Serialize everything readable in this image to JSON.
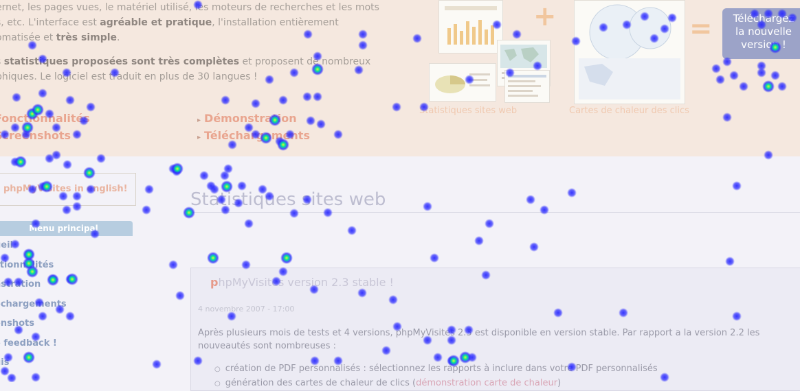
{
  "intro": {
    "p1_line1": "ernet, les pages vues, le matériel utilisé, les moteurs de recherches et les mots",
    "p1_line2_pre": "s, etc. L'interface est ",
    "p1_line2_bold": "agréable et pratique",
    "p1_line2_post": ", l'installation entièrement",
    "p1_line3_pre": "omatisée et ",
    "p1_line3_bold": "très simple",
    "p1_line3_post": ".",
    "p2_line1_pre": "s ",
    "p2_line1_bold": "statistiques proposées sont très complètes",
    "p2_line1_post": " et proposent de nombreux",
    "p2_line2": "phiques. Le logiciel est traduit en plus de 30 langues !"
  },
  "links": {
    "left": [
      "Fonctionnalités",
      "Screenshots"
    ],
    "right": [
      "Démonstration",
      "Téléchargements"
    ],
    "arrow": "▸"
  },
  "header_graphics": {
    "plus": "+",
    "equals": "=",
    "caption_left": "Statistiques sites web",
    "caption_right": "Cartes de chaleur des clics"
  },
  "download_button": {
    "line1": "Téléchargez",
    "line2": "la nouvelle",
    "line3": "version !"
  },
  "english_link": "phpMyVisites in english!",
  "page_title": "Statistiques sites web",
  "menu": {
    "title": "Menu principal",
    "items": [
      "ueil",
      "ctionnalités",
      "nstration",
      "échargements",
      "enshots",
      "e feedback !",
      "uis"
    ]
  },
  "news": {
    "title_first_letter": "p",
    "title_rest": "hpMyVisites version 2.3 stable !",
    "date": "4 novembre 2007 - 17:00",
    "body": "Après plusieurs mois de tests et 4 versions, phpMyVisites 2.3 est disponible en version stable. Par rapport a la version 2.2 les nouveautés sont nombreuses :",
    "bullet1": "création de PDF personnalisés : sélectionnez les rapports à inclure dans votre PDF personnalisés",
    "bullet2_pre": "génération des cartes de chaleur de clics (",
    "bullet2_link": "démonstration carte de chaleur",
    "bullet2_post": ")"
  },
  "heatmap": {
    "colors": {
      "cold": "#2b2bff",
      "warm": "#00e0a0",
      "hot": "#d8ff2a"
    }
  },
  "colors": {
    "header_band": "#f5e8df",
    "link_orange": "#e9a58f",
    "menu_header": "#b7cde0",
    "download_button": "#9ca3c8"
  }
}
